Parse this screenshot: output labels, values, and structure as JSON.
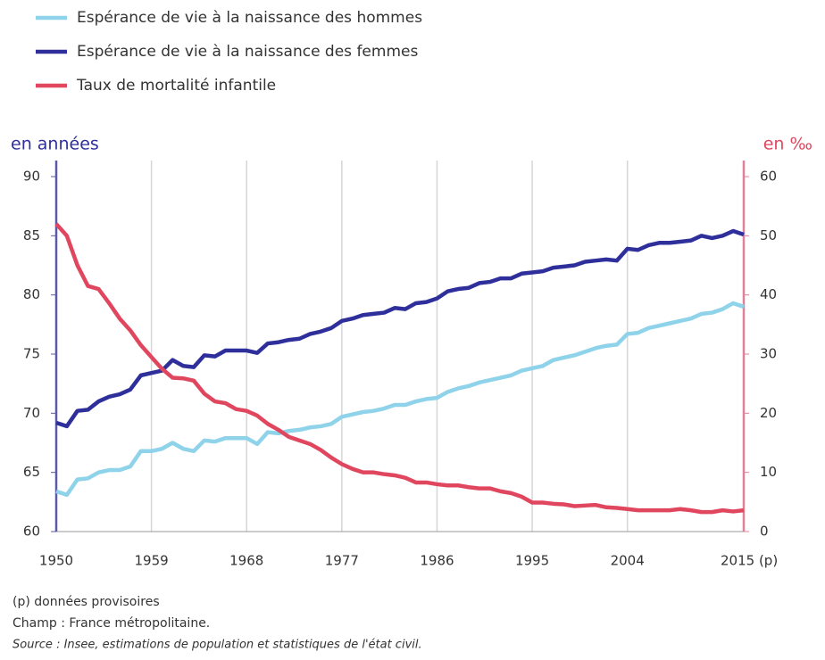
{
  "chart_data": {
    "type": "line",
    "x": [
      1950,
      1951,
      1952,
      1953,
      1954,
      1955,
      1956,
      1957,
      1958,
      1959,
      1960,
      1961,
      1962,
      1963,
      1964,
      1965,
      1966,
      1967,
      1968,
      1969,
      1970,
      1971,
      1972,
      1973,
      1974,
      1975,
      1976,
      1977,
      1978,
      1979,
      1980,
      1981,
      1982,
      1983,
      1984,
      1985,
      1986,
      1987,
      1988,
      1989,
      1990,
      1991,
      1992,
      1993,
      1994,
      1995,
      1996,
      1997,
      1998,
      1999,
      2000,
      2001,
      2002,
      2003,
      2004,
      2005,
      2006,
      2007,
      2008,
      2009,
      2010,
      2011,
      2012,
      2013,
      2014,
      2015
    ],
    "series": [
      {
        "name": "Espérance de vie à la naissance des hommes",
        "color": "#8fd3ea",
        "values": [
          63.4,
          63.1,
          64.4,
          64.5,
          65.0,
          65.2,
          65.2,
          65.5,
          66.8,
          66.8,
          67.0,
          67.5,
          67.0,
          66.8,
          67.7,
          67.6,
          67.9,
          67.9,
          67.9,
          67.4,
          68.4,
          68.3,
          68.5,
          68.6,
          68.8,
          68.9,
          69.1,
          69.7,
          69.9,
          70.1,
          70.2,
          70.4,
          70.7,
          70.7,
          71.0,
          71.2,
          71.3,
          71.8,
          72.1,
          72.3,
          72.6,
          72.8,
          73.0,
          73.2,
          73.6,
          73.8,
          74.0,
          74.5,
          74.7,
          74.9,
          75.2,
          75.5,
          75.7,
          75.8,
          76.7,
          76.8,
          77.2,
          77.4,
          77.6,
          77.8,
          78.0,
          78.4,
          78.5,
          78.8,
          79.3,
          79.0
        ]
      },
      {
        "name": "Espérance de vie à la naissance des femmes",
        "color": "#2e2f9a",
        "values": [
          69.2,
          68.9,
          70.2,
          70.3,
          71.0,
          71.4,
          71.6,
          72.0,
          73.2,
          73.4,
          73.6,
          74.5,
          74.0,
          73.9,
          74.9,
          74.8,
          75.3,
          75.3,
          75.3,
          75.1,
          75.9,
          76.0,
          76.2,
          76.3,
          76.7,
          76.9,
          77.2,
          77.8,
          78.0,
          78.3,
          78.4,
          78.5,
          78.9,
          78.8,
          79.3,
          79.4,
          79.7,
          80.3,
          80.5,
          80.6,
          81.0,
          81.1,
          81.4,
          81.4,
          81.8,
          81.9,
          82.0,
          82.3,
          82.4,
          82.5,
          82.8,
          82.9,
          83.0,
          82.9,
          83.9,
          83.8,
          84.2,
          84.4,
          84.4,
          84.5,
          84.6,
          85.0,
          84.8,
          85.0,
          85.4,
          85.1
        ]
      },
      {
        "name": "Taux de mortalité infantile",
        "color": "#e0475f",
        "axis": "y2",
        "values": [
          52,
          50,
          45,
          41.5,
          41,
          38.6,
          36,
          34,
          31.5,
          29.5,
          27.5,
          26,
          25.9,
          25.5,
          23.3,
          22,
          21.7,
          20.7,
          20.4,
          19.6,
          18.2,
          17.2,
          16.0,
          15.4,
          14.8,
          13.8,
          12.5,
          11.4,
          10.6,
          10.0,
          10.0,
          9.7,
          9.5,
          9.1,
          8.3,
          8.3,
          8.0,
          7.8,
          7.8,
          7.5,
          7.3,
          7.3,
          6.8,
          6.5,
          5.9,
          4.9,
          4.9,
          4.7,
          4.6,
          4.3,
          4.4,
          4.5,
          4.1,
          4.0,
          3.8,
          3.6,
          3.6,
          3.6,
          3.6,
          3.8,
          3.6,
          3.3,
          3.3,
          3.6,
          3.4,
          3.6
        ]
      }
    ],
    "y_label": "en années",
    "y2_label": "en ‰",
    "xlim": [
      1950,
      2015
    ],
    "xticks": [
      1950,
      1959,
      1968,
      1977,
      1986,
      1995,
      2004,
      {
        "value": 2015,
        "label": "2015 (p)"
      }
    ],
    "ylim": [
      60,
      90
    ],
    "yticks": [
      60,
      65,
      70,
      75,
      80,
      85,
      90
    ],
    "y2lim": [
      0,
      60
    ],
    "y2ticks": [
      0,
      10,
      20,
      30,
      40,
      50,
      60
    ],
    "grid": true,
    "legend": "top-left",
    "notes": [
      "(p) données provisoires",
      "Champ : France métropolitaine.",
      "Source : Insee, estimations de population et statistiques de l'état civil."
    ]
  }
}
